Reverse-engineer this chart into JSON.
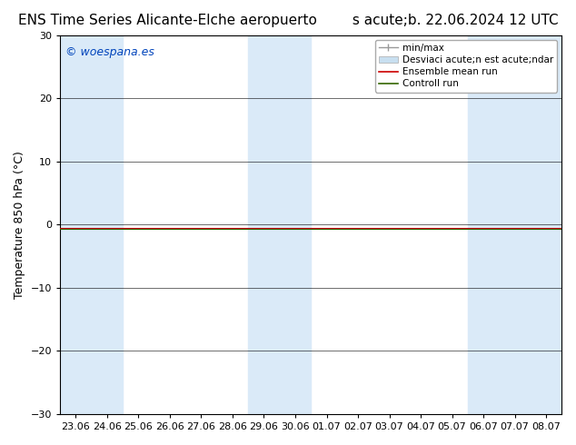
{
  "title": "ENS Time Series Alicante-Elche aeropuerto",
  "subtitle": "s acute;b. 22.06.2024 12 UTC",
  "ylabel": "Temperature 850 hPa (°C)",
  "ylim": [
    -30,
    30
  ],
  "yticks": [
    -30,
    -20,
    -10,
    0,
    10,
    20,
    30
  ],
  "x_labels": [
    "23.06",
    "24.06",
    "25.06",
    "26.06",
    "27.06",
    "28.06",
    "29.06",
    "30.06",
    "01.07",
    "02.07",
    "03.07",
    "04.07",
    "05.07",
    "06.07",
    "07.07",
    "08.07"
  ],
  "shaded_band_indices": [
    0,
    1,
    6,
    7,
    13,
    14,
    15
  ],
  "shade_color": "#daeaf8",
  "ensemble_mean_color": "#cc0000",
  "control_run_color": "#336600",
  "minmax_color": "#999999",
  "std_band_color": "#c8dff0",
  "background_color": "#ffffff",
  "plot_bg_color": "#ffffff",
  "watermark_text": "© woespana.es",
  "watermark_color": "#0044bb",
  "legend_labels": [
    "min/max",
    "Desviaci acute;n est acute;ndar",
    "Ensemble mean run",
    "Controll run"
  ],
  "title_fontsize": 11,
  "axis_fontsize": 9,
  "tick_fontsize": 8,
  "legend_fontsize": 7.5,
  "fig_width": 6.34,
  "fig_height": 4.9,
  "dpi": 100
}
